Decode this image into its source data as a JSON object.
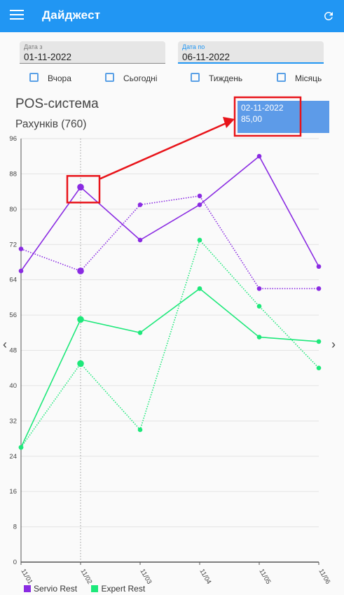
{
  "appbar": {
    "title": "Дайджест",
    "menu_icon": "menu-icon",
    "refresh_icon": "refresh-icon"
  },
  "filters": {
    "date_from": {
      "label": "Дата з",
      "value": "01-11-2022"
    },
    "date_to": {
      "label": "Дата по",
      "value": "06-11-2022"
    },
    "checkboxes": [
      {
        "label": "Вчора",
        "checked": false
      },
      {
        "label": "Сьогодні",
        "checked": false
      },
      {
        "label": "Тиждень",
        "checked": false
      },
      {
        "label": "Місяць",
        "checked": false
      }
    ]
  },
  "chart_header": {
    "title": "POS-система",
    "subtitle": "Рахунків (760)"
  },
  "tooltip": {
    "date": "02-11-2022",
    "value": "85,00"
  },
  "nav": {
    "left": "‹",
    "right": "›"
  },
  "colors": {
    "appbar": "#2196f3",
    "servio": "#8a2be2",
    "expert": "#1de87a",
    "tooltip": "#5d9be8",
    "annotation": "#e8141a"
  },
  "chart_data": {
    "type": "line",
    "categories": [
      "11/01",
      "11/02",
      "11/03",
      "11/04",
      "11/05",
      "11/06"
    ],
    "ylim": [
      0,
      96
    ],
    "yticks": [
      0,
      8,
      16,
      24,
      32,
      40,
      48,
      56,
      64,
      72,
      80,
      88,
      96
    ],
    "grid": true,
    "legend_position": "bottom-left",
    "highlight_category": "11/02",
    "series": [
      {
        "name": "Servio Rest",
        "style": "solid",
        "color": "#8a2be2",
        "values": [
          66,
          85,
          73,
          81,
          92,
          67
        ]
      },
      {
        "name": "",
        "style": "dotted",
        "color": "#8a2be2",
        "values": [
          71,
          66,
          81,
          83,
          62,
          62
        ]
      },
      {
        "name": "Expert Rest",
        "style": "solid",
        "color": "#1de87a",
        "values": [
          26,
          55,
          52,
          62,
          51,
          50
        ]
      },
      {
        "name": "",
        "style": "dotted",
        "color": "#1de87a",
        "values": [
          26,
          45,
          30,
          73,
          58,
          44
        ]
      }
    ]
  }
}
